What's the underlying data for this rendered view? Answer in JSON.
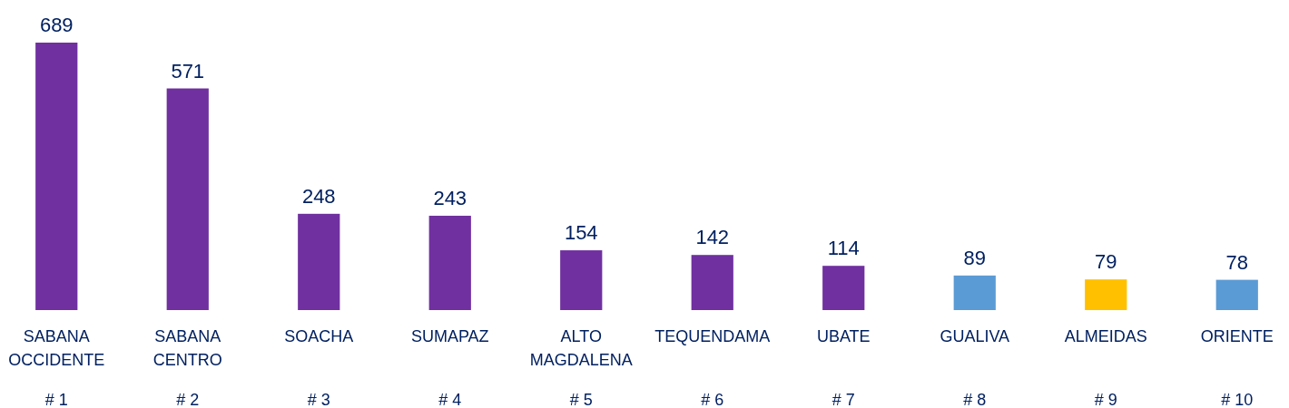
{
  "chart_data": {
    "type": "bar",
    "categories": [
      "SABANA OCCIDENTE",
      "SABANA CENTRO",
      "SOACHA",
      "SUMAPAZ",
      "ALTO MAGDALENA",
      "TEQUENDAMA",
      "UBATE",
      "GUALIVA",
      "ALMEIDAS",
      "ORIENTE"
    ],
    "values": [
      689,
      571,
      248,
      243,
      154,
      142,
      114,
      89,
      79,
      78
    ],
    "colors": [
      "#7030a0",
      "#7030a0",
      "#7030a0",
      "#7030a0",
      "#7030a0",
      "#7030a0",
      "#7030a0",
      "#5b9bd5",
      "#ffc000",
      "#5b9bd5"
    ],
    "data_labels": true,
    "annotations": [
      "# 1",
      "# 2",
      "# 3",
      "# 4",
      "# 5",
      "# 6",
      "# 7",
      "# 8",
      "# 9",
      "# 10"
    ]
  }
}
